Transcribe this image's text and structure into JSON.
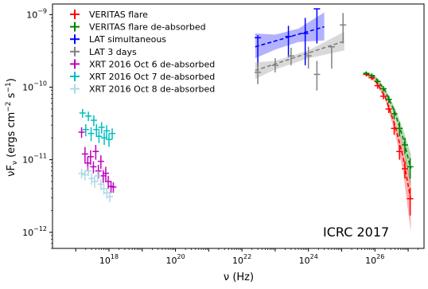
{
  "chart_data": {
    "type": "scatter",
    "xlabel": "ν (Hz)",
    "ylabel": "νF_ν (ergs cm^-2 s^-1)",
    "xscale": "log",
    "yscale": "log",
    "xlim": [
      2e+16,
      3e+27
    ],
    "ylim": [
      6e-13,
      1.4e-09
    ],
    "x_ticks": [
      {
        "value": 1e+18,
        "base": "10",
        "exp": "18"
      },
      {
        "value": 1e+20,
        "base": "10",
        "exp": "20"
      },
      {
        "value": 1e+22,
        "base": "10",
        "exp": "22"
      },
      {
        "value": 1e+24,
        "base": "10",
        "exp": "24"
      },
      {
        "value": 1e+26,
        "base": "10",
        "exp": "26"
      }
    ],
    "y_ticks": [
      {
        "value": 1e-12,
        "base": "10",
        "exp": "−12"
      },
      {
        "value": 1e-11,
        "base": "10",
        "exp": "−11"
      },
      {
        "value": 1e-10,
        "base": "10",
        "exp": "−10"
      },
      {
        "value": 1e-09,
        "base": "10",
        "exp": "−9"
      }
    ],
    "legend_position": "top-left",
    "annotation": "ICRC 2017",
    "series": [
      {
        "name": "VERITAS flare",
        "color": "#ff0000",
        "points": [
          {
            "x": 5.5e+25,
            "y": 1.5e-10,
            "yerr": [
              1.4e-10,
              1.6e-10
            ]
          },
          {
            "x": 8e+25,
            "y": 1.35e-10,
            "yerr": [
              1.25e-10,
              1.45e-10
            ]
          },
          {
            "x": 1.2e+26,
            "y": 1.05e-10,
            "yerr": [
              9.5e-11,
              1.15e-10
            ]
          },
          {
            "x": 1.8e+26,
            "y": 7.5e-11,
            "yerr": [
              6.8e-11,
              8.3e-11
            ]
          },
          {
            "x": 2.6e+26,
            "y": 5e-11,
            "yerr": [
              4.4e-11,
              5.7e-11
            ]
          },
          {
            "x": 3.8e+26,
            "y": 2.7e-11,
            "yerr": [
              2.2e-11,
              3.2e-11
            ]
          },
          {
            "x": 5.5e+26,
            "y": 1.3e-11,
            "yerr": [
              1e-11,
              1.6e-11
            ]
          },
          {
            "x": 8e+26,
            "y": 7.5e-12,
            "yerr": [
              5.5e-12,
              9.5e-12
            ]
          },
          {
            "x": 1.15e+27,
            "y": 2.9e-12,
            "yerr": [
              1.7e-12,
              4.1e-12
            ]
          }
        ],
        "curve": [
          [
            5e+25,
            1.55e-10
          ],
          [
            1e+26,
            1.25e-10
          ],
          [
            2e+26,
            7.5e-11
          ],
          [
            4e+26,
            3e-11
          ],
          [
            7e+26,
            1.1e-11
          ],
          [
            1.2e+27,
            2.8e-12
          ]
        ],
        "band": {
          "x": [
            5e+25,
            1e+26,
            2e+26,
            4e+26,
            7e+26,
            1.2e+27
          ],
          "lower": [
            1.5e-10,
            1.18e-10,
            6.8e-11,
            2.4e-11,
            7e-12,
            1e-12
          ],
          "upper": [
            1.6e-10,
            1.32e-10,
            8.2e-11,
            3.6e-11,
            1.6e-11,
            5e-12
          ]
        }
      },
      {
        "name": "VERITAS flare de-absorbed",
        "color": "#008000",
        "points": [
          {
            "x": 5.5e+25,
            "y": 1.55e-10,
            "yerr": [
              1.45e-10,
              1.65e-10
            ]
          },
          {
            "x": 8e+25,
            "y": 1.45e-10,
            "yerr": [
              1.35e-10,
              1.55e-10
            ]
          },
          {
            "x": 1.2e+26,
            "y": 1.2e-10,
            "yerr": [
              1.1e-10,
              1.3e-10
            ]
          },
          {
            "x": 1.8e+26,
            "y": 9.5e-11,
            "yerr": [
              8.7e-11,
              1.03e-10
            ]
          },
          {
            "x": 2.6e+26,
            "y": 6.8e-11,
            "yerr": [
              6e-11,
              7.6e-11
            ]
          },
          {
            "x": 3.8e+26,
            "y": 4.3e-11,
            "yerr": [
              3.6e-11,
              5e-11
            ]
          },
          {
            "x": 5.5e+26,
            "y": 2.7e-11,
            "yerr": [
              2.1e-11,
              3.3e-11
            ]
          },
          {
            "x": 8e+26,
            "y": 1.6e-11,
            "yerr": [
              1.2e-11,
              2e-11
            ]
          },
          {
            "x": 1.15e+27,
            "y": 8e-12,
            "yerr": [
              5.5e-12,
              1.05e-11
            ]
          }
        ],
        "curve": [
          [
            5e+25,
            1.58e-10
          ],
          [
            1e+26,
            1.38e-10
          ],
          [
            2e+26,
            9e-11
          ],
          [
            4e+26,
            4.5e-11
          ],
          [
            7e+26,
            2e-11
          ],
          [
            1.2e+27,
            7.5e-12
          ]
        ],
        "band": {
          "x": [
            5e+25,
            1e+26,
            2e+26,
            4e+26,
            7e+26,
            1.2e+27
          ],
          "lower": [
            1.53e-10,
            1.3e-10,
            8.2e-11,
            3.8e-11,
            1.5e-11,
            4e-12
          ],
          "upper": [
            1.63e-10,
            1.46e-10,
            9.8e-11,
            5.2e-11,
            2.6e-11,
            1.2e-11
          ]
        }
      },
      {
        "name": "LAT simultaneous",
        "color": "#0000ff",
        "points": [
          {
            "x": 3e+22,
            "y": 4.8e-10,
            "yerr": [
              1.9e-10,
              5.2e-10
            ]
          },
          {
            "x": 2.5e+23,
            "y": 5e-10,
            "yerr": [
              2.6e-10,
              7e-10
            ]
          },
          {
            "x": 8e+23,
            "y": 5.5e-10,
            "yerr": [
              2e-10,
              9e-10
            ]
          },
          {
            "x": 1.8e+24,
            "y": 1.2e-09,
            "yerr": [
              4e-10,
              1.2e-09
            ]
          }
        ],
        "curve": [
          [
            2.5e+22,
            3.6e-10
          ],
          [
            3e+24,
            6.8e-10
          ]
        ],
        "band": {
          "x": [
            2.5e+22,
            1e+23,
            5e+23,
            3e+24
          ],
          "lower": [
            2.5e-10,
            3.3e-10,
            4.2e-10,
            4.4e-10
          ],
          "upper": [
            5.5e-10,
            5.3e-10,
            6.4e-10,
            1.07e-09
          ]
        }
      },
      {
        "name": "LAT 3 days",
        "color": "#808080",
        "points": [
          {
            "x": 3e+22,
            "y": 1.6e-10,
            "yerr": [
              1.1e-10,
              2.2e-10
            ]
          },
          {
            "x": 1e+23,
            "y": 2e-10,
            "yerr": [
              1.6e-10,
              2.5e-10
            ]
          },
          {
            "x": 3e+23,
            "y": 2.7e-10,
            "yerr": [
              2e-10,
              3.5e-10
            ]
          },
          {
            "x": 1e+24,
            "y": 2.7e-10,
            "yerr": [
              1.8e-10,
              3.6e-10
            ]
          },
          {
            "x": 1.8e+24,
            "y": 1.5e-10,
            "yerr": [
              9e-11,
              2.3e-10
            ]
          },
          {
            "x": 5e+24,
            "y": 3.6e-10,
            "yerr": [
              1.8e-10,
              3.6e-10
            ]
          },
          {
            "x": 1.1e+25,
            "y": 7.2e-10,
            "yerr": [
              4e-10,
              1.05e-09
            ]
          }
        ],
        "curve": [
          [
            2.5e+22,
            1.7e-10
          ],
          [
            1.2e+25,
            4.3e-10
          ]
        ],
        "band": {
          "x": [
            2.5e+22,
            1e+23,
            1e+24,
            1.2e+25
          ],
          "lower": [
            1.3e-10,
            1.75e-10,
            2.5e-10,
            3.2e-10
          ],
          "upper": [
            2.2e-10,
            2.3e-10,
            3.2e-10,
            5.8e-10
          ]
        }
      },
      {
        "name": "XRT 2016 Oct 6 de-absorbed",
        "color": "#bf00bf",
        "points": [
          {
            "x": 1.5e+17,
            "y": 2.4e-11,
            "yerr": [
              2e-11,
              2.8e-11
            ]
          },
          {
            "x": 1.9e+17,
            "y": 1.2e-11,
            "yerr": [
              9e-12,
              1.5e-11
            ]
          },
          {
            "x": 2.3e+17,
            "y": 9e-12,
            "yerr": [
              7e-12,
              1.1e-11
            ]
          },
          {
            "x": 2.8e+17,
            "y": 1.1e-11,
            "yerr": [
              8.5e-12,
              1.35e-11
            ]
          },
          {
            "x": 3.4e+17,
            "y": 8e-12,
            "yerr": [
              6.5e-12,
              9.5e-12
            ]
          },
          {
            "x": 4e+17,
            "y": 1.3e-11,
            "yerr": [
              1e-11,
              1.6e-11
            ]
          },
          {
            "x": 4.8e+17,
            "y": 7e-12,
            "yerr": [
              5.5e-12,
              8.5e-12
            ]
          },
          {
            "x": 5.7e+17,
            "y": 9.5e-12,
            "yerr": [
              7.5e-12,
              1.15e-11
            ]
          },
          {
            "x": 6.7e+17,
            "y": 6e-12,
            "yerr": [
              4.8e-12,
              7.2e-12
            ]
          },
          {
            "x": 8e+17,
            "y": 6.5e-12,
            "yerr": [
              5e-12,
              8e-12
            ]
          },
          {
            "x": 9.5e+17,
            "y": 5e-12,
            "yerr": [
              4e-12,
              6e-12
            ]
          },
          {
            "x": 1.15e+18,
            "y": 4.3e-12,
            "yerr": [
              3.5e-12,
              5.1e-12
            ]
          },
          {
            "x": 1.35e+18,
            "y": 4.2e-12,
            "yerr": [
              3.5e-12,
              4.9e-12
            ]
          }
        ]
      },
      {
        "name": "XRT 2016 Oct 7 de-absorbed",
        "color": "#00bfbf",
        "points": [
          {
            "x": 1.6e+17,
            "y": 4.4e-11,
            "yerr": [
              3.8e-11,
              5e-11
            ]
          },
          {
            "x": 2e+17,
            "y": 2.6e-11,
            "yerr": [
              2.1e-11,
              3.1e-11
            ]
          },
          {
            "x": 2.4e+17,
            "y": 4e-11,
            "yerr": [
              3.4e-11,
              4.6e-11
            ]
          },
          {
            "x": 2.9e+17,
            "y": 2.3e-11,
            "yerr": [
              1.8e-11,
              2.8e-11
            ]
          },
          {
            "x": 3.5e+17,
            "y": 3.5e-11,
            "yerr": [
              2.9e-11,
              4.1e-11
            ]
          },
          {
            "x": 4.2e+17,
            "y": 2.6e-11,
            "yerr": [
              2.1e-11,
              3.1e-11
            ]
          },
          {
            "x": 5e+17,
            "y": 2.1e-11,
            "yerr": [
              1.7e-11,
              2.5e-11
            ]
          },
          {
            "x": 6e+17,
            "y": 2.8e-11,
            "yerr": [
              2.3e-11,
              3.3e-11
            ]
          },
          {
            "x": 7.2e+17,
            "y": 2e-11,
            "yerr": [
              1.6e-11,
              2.4e-11
            ]
          },
          {
            "x": 8.5e+17,
            "y": 2.5e-11,
            "yerr": [
              2e-11,
              3e-11
            ]
          },
          {
            "x": 1e+18,
            "y": 1.9e-11,
            "yerr": [
              1.5e-11,
              2.3e-11
            ]
          },
          {
            "x": 1.25e+18,
            "y": 2.3e-11,
            "yerr": [
              1.9e-11,
              2.7e-11
            ]
          }
        ]
      },
      {
        "name": "XRT 2016 Oct 8 de-absorbed",
        "color": "#add8e6",
        "points": [
          {
            "x": 1.5e+17,
            "y": 6.5e-12,
            "yerr": [
              5.5e-12,
              7.5e-12
            ]
          },
          {
            "x": 1.9e+17,
            "y": 6.2e-12,
            "yerr": [
              5.2e-12,
              7.2e-12
            ]
          },
          {
            "x": 2.4e+17,
            "y": 7e-12,
            "yerr": [
              6e-12,
              8e-12
            ]
          },
          {
            "x": 3e+17,
            "y": 5.5e-12,
            "yerr": [
              4.5e-12,
              6.5e-12
            ]
          },
          {
            "x": 3.7e+17,
            "y": 5e-12,
            "yerr": [
              4.1e-12,
              5.9e-12
            ]
          },
          {
            "x": 4.6e+17,
            "y": 6e-12,
            "yerr": [
              5e-12,
              7e-12
            ]
          },
          {
            "x": 5.7e+17,
            "y": 4.6e-12,
            "yerr": [
              3.8e-12,
              5.4e-12
            ]
          },
          {
            "x": 7e+17,
            "y": 4e-12,
            "yerr": [
              3.3e-12,
              4.7e-12
            ]
          },
          {
            "x": 8.6e+17,
            "y": 3.5e-12,
            "yerr": [
              2.9e-12,
              4.1e-12
            ]
          },
          {
            "x": 1.05e+18,
            "y": 3.1e-12,
            "yerr": [
              2.6e-12,
              3.6e-12
            ]
          }
        ]
      }
    ]
  }
}
